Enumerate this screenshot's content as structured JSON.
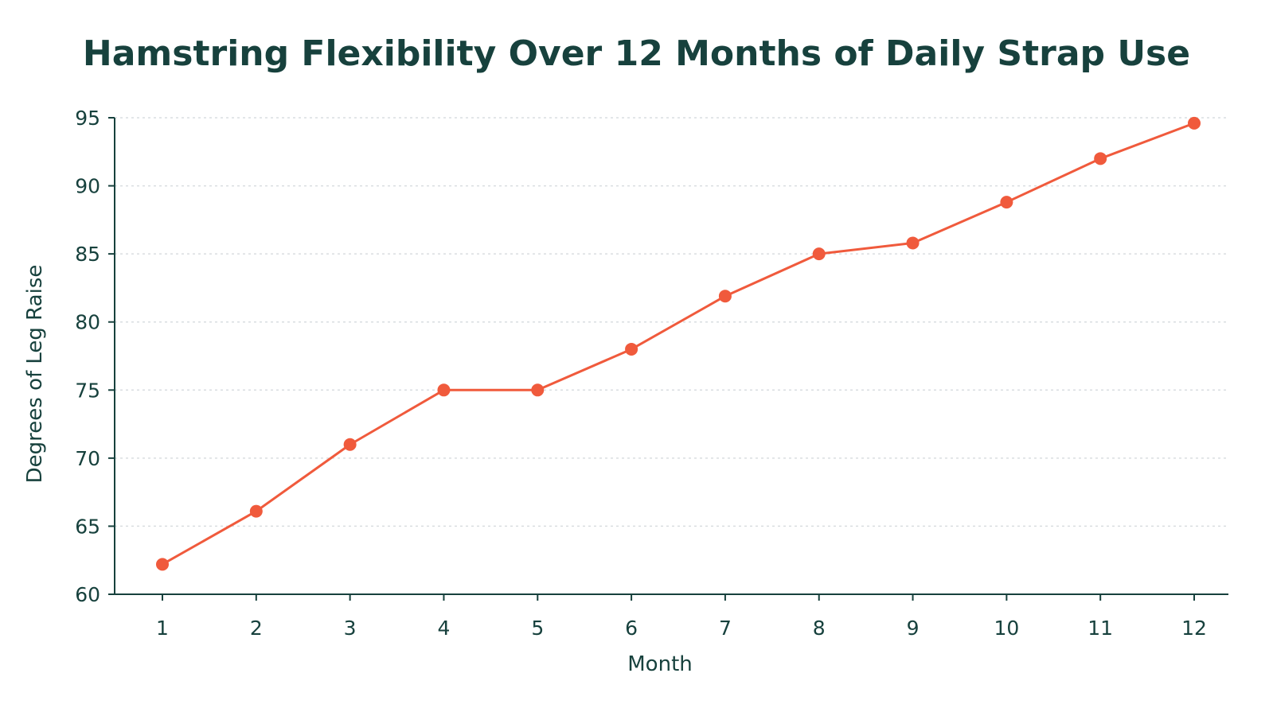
{
  "chart_data": {
    "type": "line",
    "title": "Hamstring Flexibility Over 12 Months of Daily Strap Use",
    "xlabel": "Month",
    "ylabel": "Degrees of Leg Raise",
    "x": [
      1,
      2,
      3,
      4,
      5,
      6,
      7,
      8,
      9,
      10,
      11,
      12
    ],
    "series": [
      {
        "values": [
          62.2,
          66.1,
          71,
          75,
          75,
          78,
          81.9,
          85,
          85.8,
          88.8,
          92,
          94.6
        ]
      }
    ],
    "ylim": [
      60,
      95
    ],
    "yticks": [
      60,
      65,
      70,
      75,
      80,
      85,
      90,
      95
    ],
    "grid": "horizontal-dotted",
    "legend": "none",
    "colors": {
      "line": "#f05a3c",
      "text": "#17413d",
      "axis": "#17413d",
      "grid": "#d9dde0"
    }
  }
}
